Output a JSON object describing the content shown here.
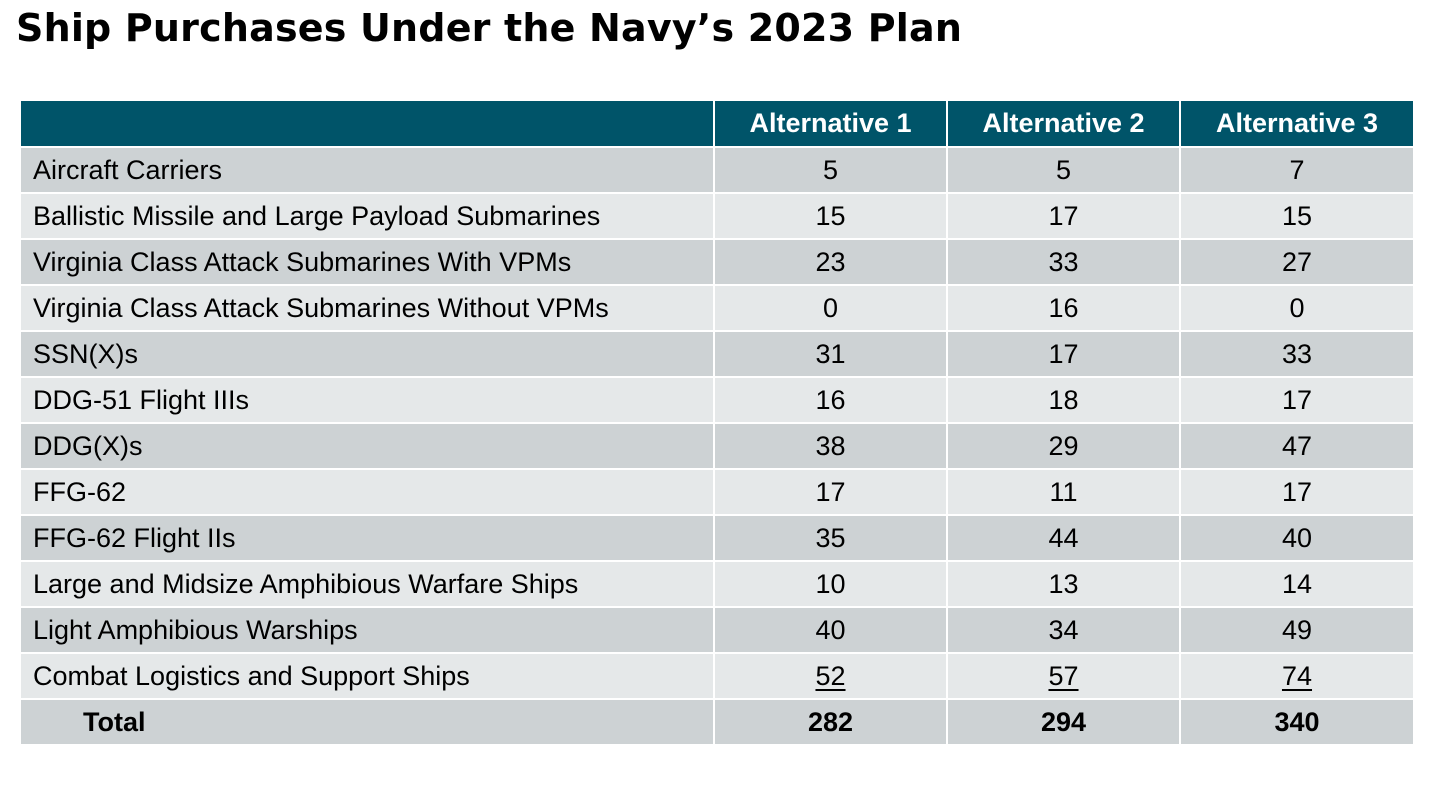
{
  "title": "Ship Purchases Under the Navy’s 2023 Plan",
  "header": {
    "corner": "",
    "columns": [
      "Alternative 1",
      "Alternative 2",
      "Alternative 3"
    ]
  },
  "rows": [
    {
      "label": "Aircraft Carriers",
      "values": [
        "5",
        "5",
        "7"
      ]
    },
    {
      "label": "Ballistic Missile and Large Payload Submarines",
      "values": [
        "15",
        "17",
        "15"
      ]
    },
    {
      "label": "Virginia Class Attack Submarines With VPMs",
      "values": [
        "23",
        "33",
        "27"
      ]
    },
    {
      "label": "Virginia Class Attack Submarines Without VPMs",
      "values": [
        "0",
        "16",
        "0"
      ]
    },
    {
      "label": "SSN(X)s",
      "values": [
        "31",
        "17",
        "33"
      ]
    },
    {
      "label": "DDG-51 Flight IIIs",
      "values": [
        "16",
        "18",
        "17"
      ]
    },
    {
      "label": "DDG(X)s",
      "values": [
        "38",
        "29",
        "47"
      ]
    },
    {
      "label": "FFG-62",
      "values": [
        "17",
        "11",
        "17"
      ]
    },
    {
      "label": "FFG-62 Flight IIs",
      "values": [
        "35",
        "44",
        "40"
      ]
    },
    {
      "label": "Large and Midsize Amphibious Warfare Ships",
      "values": [
        "10",
        "13",
        "14"
      ]
    },
    {
      "label": "Light Amphibious Warships",
      "values": [
        "40",
        "34",
        "49"
      ]
    },
    {
      "label": "Combat Logistics and Support Ships",
      "values": [
        "52",
        "57",
        "74"
      ]
    }
  ],
  "total": {
    "label": "Total",
    "values": [
      "282",
      "294",
      "340"
    ]
  },
  "colors": {
    "header_bg": "#005469",
    "header_text": "#ffffff",
    "row_dark": "#cdd2d4",
    "row_light": "#e5e8e9"
  }
}
